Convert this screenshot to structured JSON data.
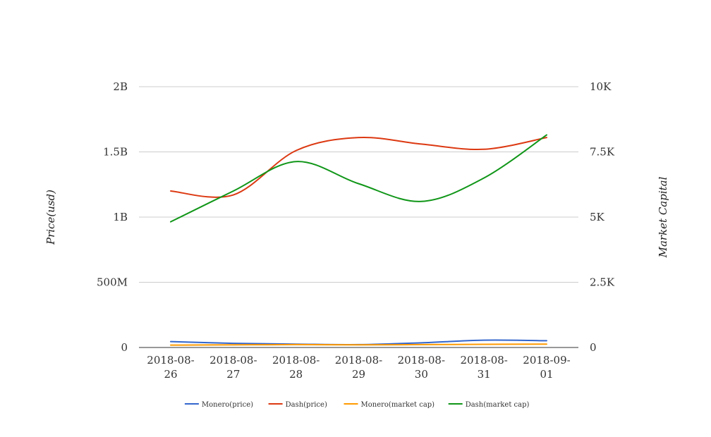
{
  "chart_data": {
    "type": "line",
    "title": "",
    "x": [
      "2018-08-26",
      "2018-08-27",
      "2018-08-28",
      "2018-08-29",
      "2018-08-30",
      "2018-08-31",
      "2018-09-01"
    ],
    "x_tick_labels": [
      [
        "2018-08-",
        "26"
      ],
      [
        "2018-08-",
        "27"
      ],
      [
        "2018-08-",
        "28"
      ],
      [
        "2018-08-",
        "29"
      ],
      [
        "2018-08-",
        "30"
      ],
      [
        "2018-08-",
        "31"
      ],
      [
        "2018-09-",
        "01"
      ]
    ],
    "ylabel": "Price(usd)",
    "ylabel_right": "Market Capital",
    "ylim": [
      0,
      2000000000
    ],
    "ylim_right": [
      0,
      10000
    ],
    "yticks": [
      {
        "value": 0,
        "label": "0"
      },
      {
        "value": 500000000,
        "label": "500M"
      },
      {
        "value": 1000000000,
        "label": "1B"
      },
      {
        "value": 1500000000,
        "label": "1.5B"
      },
      {
        "value": 2000000000,
        "label": "2B"
      }
    ],
    "yticks_right": [
      {
        "value": 0,
        "label": "0"
      },
      {
        "value": 2500,
        "label": "2.5K"
      },
      {
        "value": 5000,
        "label": "5K"
      },
      {
        "value": 7500,
        "label": "7.5K"
      },
      {
        "value": 10000,
        "label": "10K"
      }
    ],
    "grid": true,
    "legend_position": "bottom",
    "series": [
      {
        "name": "Monero(price)",
        "axis": "left",
        "color": "#3366cc",
        "values": [
          45000000,
          32000000,
          26000000,
          22000000,
          36000000,
          56000000,
          52000000
        ]
      },
      {
        "name": "Dash(price)",
        "axis": "left",
        "color": "#dc3912",
        "values": [
          1200000000,
          1170000000,
          1510000000,
          1610000000,
          1560000000,
          1520000000,
          1610000000
        ]
      },
      {
        "name": "Monero(market cap)",
        "axis": "left",
        "color": "#ff9900",
        "values": [
          18000000,
          20000000,
          22000000,
          20000000,
          22000000,
          24000000,
          26000000
        ]
      },
      {
        "name": "Dash(market cap)",
        "axis": "right",
        "color": "#109618",
        "values": [
          4820,
          6000,
          7130,
          6280,
          5600,
          6500,
          8150
        ]
      }
    ]
  }
}
